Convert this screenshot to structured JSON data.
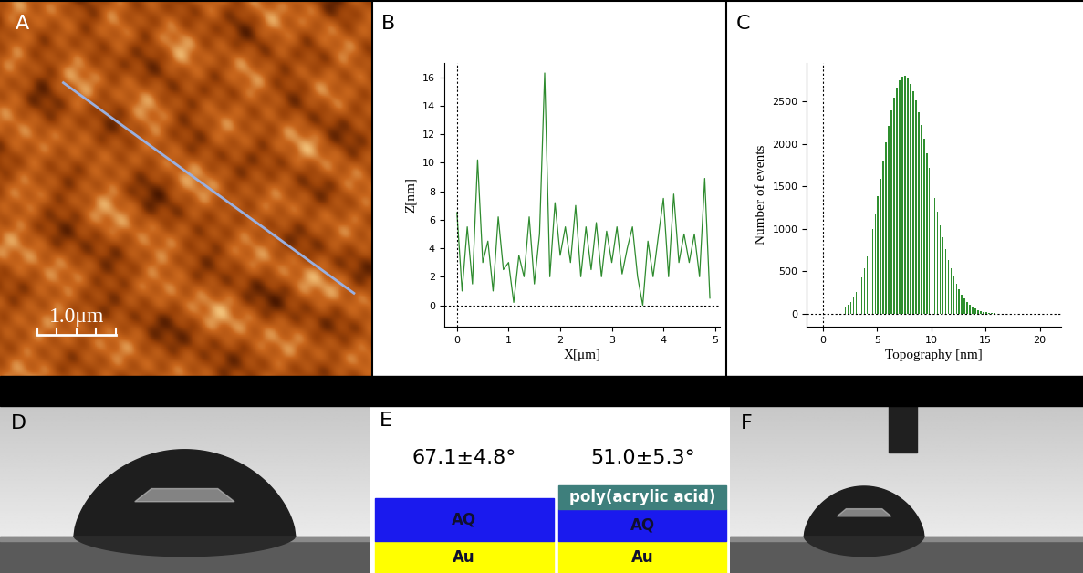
{
  "panels": {
    "labels": [
      "A",
      "B",
      "C",
      "D",
      "E",
      "F"
    ]
  },
  "afm_image": {
    "scale_bar": "1.0μm"
  },
  "chart_data": [
    {
      "type": "line",
      "color": "#2e8b2e",
      "xlabel": "X[μm]",
      "ylabel": "Z[nm]",
      "x": [
        0,
        0.1,
        0.2,
        0.3,
        0.4,
        0.5,
        0.6,
        0.7,
        0.8,
        0.9,
        1.0,
        1.1,
        1.2,
        1.3,
        1.4,
        1.5,
        1.6,
        1.7,
        1.8,
        1.9,
        2.0,
        2.1,
        2.2,
        2.3,
        2.4,
        2.5,
        2.6,
        2.7,
        2.8,
        2.9,
        3.0,
        3.1,
        3.2,
        3.3,
        3.4,
        3.5,
        3.6,
        3.7,
        3.8,
        3.9,
        4.0,
        4.1,
        4.2,
        4.3,
        4.4,
        4.5,
        4.6,
        4.7,
        4.8,
        4.9
      ],
      "values": [
        6.5,
        1,
        5.5,
        1.5,
        10.2,
        3,
        4.5,
        1,
        6.2,
        2.5,
        3,
        0.2,
        3.5,
        2,
        6.2,
        1.5,
        5,
        16.3,
        2,
        7.2,
        3.5,
        5.5,
        3,
        7,
        2,
        5.5,
        2.5,
        5.8,
        2,
        5.2,
        3,
        5.5,
        2.2,
        4,
        5.5,
        2,
        0,
        4.5,
        2,
        4.8,
        7.5,
        2,
        7.8,
        3,
        5,
        3,
        5,
        2,
        8.9,
        0.5
      ],
      "xlim": [
        -0.25,
        5.1
      ],
      "ylim": [
        -1.5,
        17
      ],
      "xticks": [
        0,
        1,
        2,
        3,
        4,
        5
      ],
      "yticks": [
        0,
        2,
        4,
        6,
        8,
        10,
        12,
        14,
        16
      ]
    },
    {
      "type": "histogram",
      "color": "#2f8f2f",
      "xlabel": "Topography [nm]",
      "ylabel": "Number of events",
      "bins": [
        2.0,
        2.25,
        2.5,
        2.75,
        3.0,
        3.25,
        3.5,
        3.75,
        4.0,
        4.25,
        4.5,
        4.75,
        5.0,
        5.25,
        5.5,
        5.75,
        6.0,
        6.25,
        6.5,
        6.75,
        7.0,
        7.25,
        7.5,
        7.75,
        8.0,
        8.25,
        8.5,
        8.75,
        9.0,
        9.25,
        9.5,
        9.75,
        10.0,
        10.25,
        10.5,
        10.75,
        11.0,
        11.25,
        11.5,
        11.75,
        12.0,
        12.25,
        12.5,
        12.75,
        13.0,
        13.25,
        13.5,
        13.75,
        14.0,
        14.25,
        14.5,
        14.75,
        15.0,
        15.25,
        15.5,
        15.75,
        16.0
      ],
      "counts": [
        76,
        105,
        144,
        194,
        256,
        333,
        428,
        541,
        675,
        826,
        997,
        1184,
        1384,
        1593,
        1803,
        2013,
        2212,
        2391,
        2545,
        2666,
        2751,
        2795,
        2797,
        2766,
        2707,
        2620,
        2508,
        2376,
        2226,
        2063,
        1892,
        1716,
        1540,
        1366,
        1199,
        1042,
        896,
        763,
        638,
        532,
        436,
        356,
        286,
        227,
        179,
        140,
        108,
        82,
        62,
        46,
        34,
        25,
        18,
        12,
        8,
        6
      ],
      "xlim": [
        -1.5,
        22
      ],
      "ylim": [
        -150,
        2950
      ],
      "xticks": [
        0,
        5,
        10,
        15,
        20
      ],
      "yticks": [
        0,
        500,
        1000,
        1500,
        2000,
        2500
      ]
    }
  ],
  "schematic": {
    "left": {
      "contact_angle": "67.1±4.8°",
      "layers": [
        {
          "label": "AQ",
          "color": "#1a1aee",
          "text_color": "#101030"
        },
        {
          "label": "Au",
          "color": "#ffff00",
          "text_color": "#101030"
        }
      ]
    },
    "right": {
      "contact_angle": "51.0±5.3°",
      "layers": [
        {
          "label": "poly(acrylic acid)",
          "color": "#3e7f7c",
          "text_color": "#ffffff"
        },
        {
          "label": "AQ",
          "color": "#1a1aee",
          "text_color": "#101030"
        },
        {
          "label": "Au",
          "color": "#ffff00",
          "text_color": "#101030"
        }
      ]
    }
  }
}
